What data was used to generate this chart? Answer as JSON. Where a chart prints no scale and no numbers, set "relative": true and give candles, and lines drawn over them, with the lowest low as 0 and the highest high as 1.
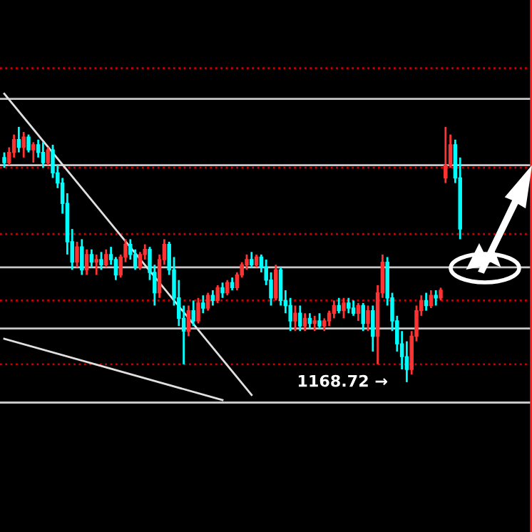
{
  "chart_data": {
    "type": "candlestick",
    "relative": true,
    "grid": false,
    "categories": [
      null,
      null,
      null,
      null,
      null,
      null,
      null,
      null,
      null,
      null,
      null,
      null,
      null,
      null,
      null,
      null,
      null,
      null,
      null,
      null,
      null,
      null,
      null,
      null,
      null,
      null,
      null,
      null,
      null,
      null,
      null,
      null,
      null,
      null,
      null,
      null,
      null,
      null,
      null,
      null,
      null,
      null,
      null,
      null,
      null,
      null,
      null,
      null,
      null,
      null,
      null,
      null,
      null,
      null,
      null,
      null,
      null,
      null,
      null,
      null,
      null,
      null,
      null,
      null,
      null,
      null,
      null,
      null,
      null,
      null,
      null,
      null,
      null,
      null,
      null,
      null,
      null,
      null,
      null,
      null,
      null,
      null,
      null,
      null,
      null,
      null,
      null,
      null,
      null,
      null,
      null,
      null,
      null,
      null,
      null
    ],
    "ohlc": [
      [
        0.88,
        0.9,
        0.84,
        0.86
      ],
      [
        0.86,
        0.92,
        0.85,
        0.9
      ],
      [
        0.9,
        0.97,
        0.88,
        0.95
      ],
      [
        0.95,
        1.0,
        0.9,
        0.92
      ],
      [
        0.92,
        0.98,
        0.88,
        0.96
      ],
      [
        0.96,
        0.97,
        0.9,
        0.91
      ],
      [
        0.91,
        0.94,
        0.86,
        0.93
      ],
      [
        0.93,
        0.95,
        0.88,
        0.9
      ],
      [
        0.9,
        0.94,
        0.84,
        0.86
      ],
      [
        0.86,
        0.92,
        0.85,
        0.91
      ],
      [
        0.91,
        0.93,
        0.8,
        0.82
      ],
      [
        0.82,
        0.85,
        0.76,
        0.78
      ],
      [
        0.78,
        0.8,
        0.66,
        0.7
      ],
      [
        0.7,
        0.74,
        0.5,
        0.55
      ],
      [
        0.55,
        0.6,
        0.44,
        0.47
      ],
      [
        0.47,
        0.55,
        0.45,
        0.53
      ],
      [
        0.53,
        0.56,
        0.42,
        0.44
      ],
      [
        0.44,
        0.52,
        0.42,
        0.5
      ],
      [
        0.5,
        0.52,
        0.45,
        0.47
      ],
      [
        0.47,
        0.5,
        0.42,
        0.48
      ],
      [
        0.48,
        0.51,
        0.44,
        0.46
      ],
      [
        0.46,
        0.52,
        0.45,
        0.5
      ],
      [
        0.5,
        0.53,
        0.46,
        0.48
      ],
      [
        0.48,
        0.49,
        0.4,
        0.42
      ],
      [
        0.42,
        0.5,
        0.41,
        0.49
      ],
      [
        0.49,
        0.56,
        0.47,
        0.54
      ],
      [
        0.54,
        0.56,
        0.48,
        0.5
      ],
      [
        0.5,
        0.52,
        0.44,
        0.45
      ],
      [
        0.45,
        0.51,
        0.44,
        0.5
      ],
      [
        0.5,
        0.54,
        0.48,
        0.52
      ],
      [
        0.52,
        0.53,
        0.4,
        0.43
      ],
      [
        0.43,
        0.46,
        0.3,
        0.35
      ],
      [
        0.35,
        0.5,
        0.33,
        0.48
      ],
      [
        0.48,
        0.56,
        0.46,
        0.54
      ],
      [
        0.54,
        0.55,
        0.42,
        0.44
      ],
      [
        0.44,
        0.49,
        0.3,
        0.33
      ],
      [
        0.33,
        0.4,
        0.22,
        0.25
      ],
      [
        0.25,
        0.3,
        0.07,
        0.2
      ],
      [
        0.2,
        0.3,
        0.18,
        0.28
      ],
      [
        0.28,
        0.32,
        0.22,
        0.24
      ],
      [
        0.24,
        0.33,
        0.23,
        0.31
      ],
      [
        0.31,
        0.34,
        0.27,
        0.29
      ],
      [
        0.29,
        0.35,
        0.28,
        0.34
      ],
      [
        0.34,
        0.36,
        0.3,
        0.32
      ],
      [
        0.32,
        0.38,
        0.31,
        0.37
      ],
      [
        0.37,
        0.39,
        0.33,
        0.35
      ],
      [
        0.35,
        0.4,
        0.34,
        0.39
      ],
      [
        0.39,
        0.41,
        0.36,
        0.37
      ],
      [
        0.37,
        0.43,
        0.36,
        0.42
      ],
      [
        0.42,
        0.47,
        0.41,
        0.46
      ],
      [
        0.46,
        0.5,
        0.44,
        0.48
      ],
      [
        0.48,
        0.51,
        0.45,
        0.46
      ],
      [
        0.46,
        0.5,
        0.45,
        0.49
      ],
      [
        0.49,
        0.5,
        0.43,
        0.45
      ],
      [
        0.45,
        0.48,
        0.38,
        0.4
      ],
      [
        0.4,
        0.43,
        0.3,
        0.33
      ],
      [
        0.33,
        0.46,
        0.32,
        0.44
      ],
      [
        0.44,
        0.45,
        0.3,
        0.32
      ],
      [
        0.32,
        0.36,
        0.27,
        0.3
      ],
      [
        0.3,
        0.33,
        0.2,
        0.24
      ],
      [
        0.24,
        0.3,
        0.2,
        0.27
      ],
      [
        0.27,
        0.3,
        0.2,
        0.22
      ],
      [
        0.22,
        0.27,
        0.2,
        0.25
      ],
      [
        0.25,
        0.27,
        0.21,
        0.23
      ],
      [
        0.23,
        0.26,
        0.2,
        0.24
      ],
      [
        0.24,
        0.27,
        0.21,
        0.22
      ],
      [
        0.22,
        0.25,
        0.2,
        0.24
      ],
      [
        0.24,
        0.28,
        0.22,
        0.27
      ],
      [
        0.27,
        0.32,
        0.25,
        0.3
      ],
      [
        0.3,
        0.33,
        0.27,
        0.28
      ],
      [
        0.28,
        0.33,
        0.25,
        0.31
      ],
      [
        0.31,
        0.33,
        0.27,
        0.29
      ],
      [
        0.29,
        0.32,
        0.26,
        0.27
      ],
      [
        0.27,
        0.31,
        0.24,
        0.3
      ],
      [
        0.3,
        0.31,
        0.2,
        0.23
      ],
      [
        0.23,
        0.3,
        0.2,
        0.28
      ],
      [
        0.28,
        0.3,
        0.12,
        0.18
      ],
      [
        0.18,
        0.38,
        0.07,
        0.35
      ],
      [
        0.35,
        0.5,
        0.33,
        0.47
      ],
      [
        0.47,
        0.49,
        0.3,
        0.33
      ],
      [
        0.33,
        0.35,
        0.2,
        0.24
      ],
      [
        0.24,
        0.26,
        0.12,
        0.15
      ],
      [
        0.15,
        0.2,
        0.05,
        0.1
      ],
      [
        0.1,
        0.16,
        0.0,
        0.05
      ],
      [
        0.05,
        0.2,
        0.03,
        0.18
      ],
      [
        0.18,
        0.3,
        0.16,
        0.28
      ],
      [
        0.28,
        0.34,
        0.26,
        0.32
      ],
      [
        0.32,
        0.35,
        0.28,
        0.3
      ],
      [
        0.3,
        0.36,
        0.29,
        0.34
      ],
      [
        0.34,
        0.36,
        0.3,
        0.33
      ],
      [
        0.33,
        0.37,
        0.32,
        0.36
      ],
      [
        0.8,
        1.0,
        0.78,
        0.85
      ],
      [
        0.85,
        0.97,
        0.84,
        0.93
      ],
      [
        0.93,
        0.95,
        0.78,
        0.8
      ],
      [
        0.8,
        0.88,
        0.56,
        0.6
      ]
    ],
    "colors": [
      "#00ffff",
      "#ff3333",
      "#ff3333",
      "#00ffff",
      "#ff3333",
      "#00ffff",
      "#ff3333",
      "#00ffff",
      "#00ffff",
      "#ff3333",
      "#00ffff",
      "#00ffff",
      "#00ffff",
      "#00ffff",
      "#00ffff",
      "#ff3333",
      "#00ffff",
      "#ff3333",
      "#00ffff",
      "#ff3333",
      "#00ffff",
      "#ff3333",
      "#00ffff",
      "#00ffff",
      "#ff3333",
      "#ff3333",
      "#00ffff",
      "#00ffff",
      "#ff3333",
      "#ff3333",
      "#00ffff",
      "#00ffff",
      "#ff3333",
      "#ff3333",
      "#00ffff",
      "#00ffff",
      "#00ffff",
      "#00ffff",
      "#ff3333",
      "#00ffff",
      "#ff3333",
      "#00ffff",
      "#ff3333",
      "#00ffff",
      "#ff3333",
      "#00ffff",
      "#ff3333",
      "#00ffff",
      "#ff3333",
      "#ff3333",
      "#ff3333",
      "#00ffff",
      "#ff3333",
      "#00ffff",
      "#00ffff",
      "#00ffff",
      "#ff3333",
      "#00ffff",
      "#00ffff",
      "#00ffff",
      "#ff3333",
      "#00ffff",
      "#ff3333",
      "#00ffff",
      "#ff3333",
      "#00ffff",
      "#ff3333",
      "#ff3333",
      "#ff3333",
      "#00ffff",
      "#ff3333",
      "#00ffff",
      "#00ffff",
      "#ff3333",
      "#00ffff",
      "#ff3333",
      "#00ffff",
      "#ff3333",
      "#ff3333",
      "#00ffff",
      "#00ffff",
      "#00ffff",
      "#00ffff",
      "#00ffff",
      "#ff3333",
      "#ff3333",
      "#ff3333",
      "#00ffff",
      "#ff3333",
      "#00ffff",
      "#ff3333",
      "#ff3333",
      "#ff3333",
      "#00ffff",
      "#00ffff"
    ],
    "series": [
      {
        "type": "line",
        "color": "#e0e0e0",
        "values": [
          1.13,
          null,
          null,
          null,
          null,
          null,
          null,
          null,
          null,
          null,
          null,
          null,
          null,
          null,
          null,
          null,
          null,
          null,
          null,
          null,
          null,
          null,
          null,
          null,
          null,
          null,
          null,
          null,
          null,
          null,
          null,
          null,
          null,
          null,
          null,
          null,
          null,
          null,
          null,
          null,
          null,
          null,
          null,
          null,
          null,
          null,
          null,
          null,
          null,
          null,
          null,
          -0.05,
          null,
          null,
          null,
          null,
          null,
          null,
          null,
          null,
          null,
          null,
          null,
          null,
          null,
          null,
          null,
          null,
          null,
          null,
          null,
          null,
          null,
          null,
          null,
          null,
          null,
          null,
          null,
          null,
          null,
          null,
          null,
          null,
          null,
          null,
          null,
          null,
          null,
          null,
          null,
          null,
          null,
          null,
          null
        ]
      },
      {
        "type": "line",
        "color": "#e0e0e0",
        "values": [
          0.17,
          null,
          null,
          null,
          null,
          null,
          null,
          null,
          null,
          null,
          null,
          null,
          null,
          null,
          null,
          null,
          null,
          null,
          null,
          null,
          null,
          null,
          null,
          null,
          null,
          null,
          null,
          null,
          null,
          null,
          null,
          null,
          null,
          null,
          null,
          null,
          null,
          null,
          null,
          null,
          null,
          null,
          null,
          null,
          null,
          -0.07,
          null,
          null,
          null,
          null,
          null,
          null,
          null,
          null,
          null,
          null,
          null,
          null,
          null,
          null,
          null,
          null,
          null,
          null,
          null,
          null,
          null,
          null,
          null,
          null,
          null,
          null,
          null,
          null,
          null,
          null,
          null,
          null,
          null,
          null,
          null,
          null,
          null,
          null,
          null,
          null,
          null,
          null,
          null,
          null,
          null,
          null,
          null,
          null,
          null
        ]
      }
    ],
    "ref_lines": [
      {
        "axis": "y",
        "value": 1.23,
        "color": "#cc0000",
        "line_style": "dotted"
      },
      {
        "axis": "y",
        "value": 1.11,
        "color": "#c8c8c8",
        "line_style": "solid"
      },
      {
        "axis": "y",
        "value": 0.85,
        "color": "#c8c8c8",
        "line_style": "solid"
      },
      {
        "axis": "y",
        "value": 0.84,
        "color": "#cc0000",
        "line_style": "dotted"
      },
      {
        "axis": "y",
        "value": 0.58,
        "color": "#cc0000",
        "line_style": "dotted"
      },
      {
        "axis": "y",
        "value": 0.45,
        "color": "#c8c8c8",
        "line_style": "solid"
      },
      {
        "axis": "y",
        "value": 0.32,
        "color": "#cc0000",
        "line_style": "dotted"
      },
      {
        "axis": "y",
        "value": 0.21,
        "color": "#c8c8c8",
        "line_style": "solid"
      },
      {
        "axis": "y",
        "value": 0.07,
        "color": "#cc0000",
        "line_style": "dotted"
      },
      {
        "axis": "y",
        "value": -0.08,
        "color": "#c8c8c8",
        "line_style": "solid"
      }
    ],
    "annotations": [
      "1168.72 →"
    ]
  }
}
